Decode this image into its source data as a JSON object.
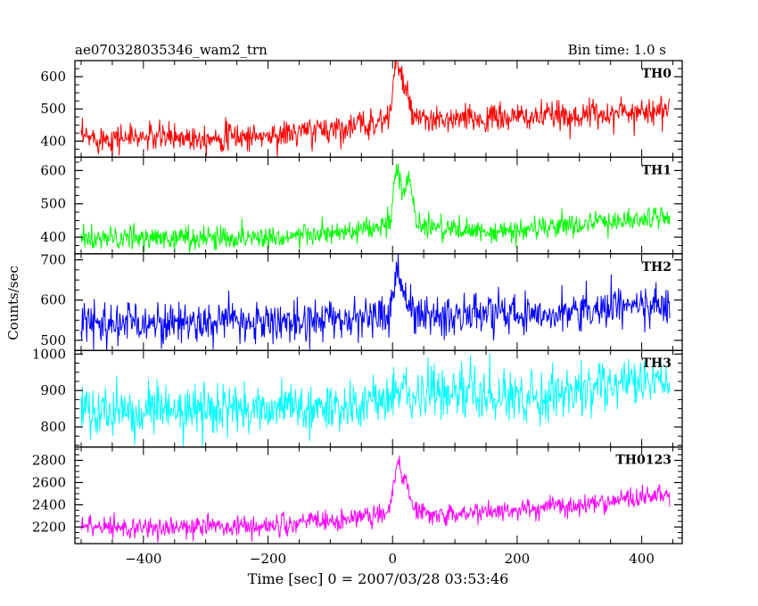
{
  "header": {
    "title": "ae070328035346_wam2_trn",
    "bin_time": "Bin time: 1.0 s"
  },
  "chart_data": {
    "type": "line",
    "xlabel": "Time [sec] 0 = 2007/03/28 03:53:46",
    "ylabel": "Counts/sec",
    "xlim": [
      -510,
      465
    ],
    "x_ticks": [
      -400,
      -200,
      0,
      200,
      400
    ],
    "x_range": [
      -500,
      445
    ],
    "grid": false,
    "panels": [
      {
        "name": "TH0",
        "color": "#ff0000",
        "ylim": [
          350,
          650
        ],
        "y_ticks": [
          400,
          500,
          600
        ],
        "trend": [
          [
            -500,
            410
          ],
          [
            -200,
            415
          ],
          [
            -50,
            450
          ],
          [
            -5,
            470
          ],
          [
            5,
            650
          ],
          [
            15,
            600
          ],
          [
            25,
            520
          ],
          [
            40,
            460
          ],
          [
            150,
            470
          ],
          [
            300,
            480
          ],
          [
            445,
            500
          ]
        ],
        "noise": 22
      },
      {
        "name": "TH1",
        "color": "#00ff00",
        "ylim": [
          350,
          640
        ],
        "y_ticks": [
          400,
          500,
          600
        ],
        "trend": [
          [
            -500,
            395
          ],
          [
            -200,
            400
          ],
          [
            -50,
            415
          ],
          [
            -5,
            440
          ],
          [
            8,
            620
          ],
          [
            15,
            520
          ],
          [
            25,
            580
          ],
          [
            40,
            440
          ],
          [
            150,
            410
          ],
          [
            300,
            440
          ],
          [
            445,
            460
          ]
        ],
        "noise": 18
      },
      {
        "name": "TH2",
        "color": "#0000ff",
        "ylim": [
          475,
          715
        ],
        "y_ticks": [
          500,
          600,
          700
        ],
        "trend": [
          [
            -500,
            545
          ],
          [
            -200,
            545
          ],
          [
            -50,
            555
          ],
          [
            -5,
            565
          ],
          [
            8,
            680
          ],
          [
            18,
            620
          ],
          [
            35,
            560
          ],
          [
            150,
            565
          ],
          [
            300,
            575
          ],
          [
            445,
            590
          ]
        ],
        "noise": 25
      },
      {
        "name": "TH3",
        "color": "#00ffff",
        "ylim": [
          745,
          1010
        ],
        "y_ticks": [
          800,
          900,
          1000
        ],
        "trend": [
          [
            -500,
            840
          ],
          [
            -300,
            845
          ],
          [
            -100,
            855
          ],
          [
            0,
            870
          ],
          [
            10,
            900
          ],
          [
            200,
            880
          ],
          [
            400,
            920
          ],
          [
            445,
            935
          ]
        ],
        "noise": 33
      },
      {
        "name": "TH0123",
        "color": "#ff00ff",
        "ylim": [
          2050,
          2920
        ],
        "y_ticks": [
          2200,
          2400,
          2600,
          2800
        ],
        "trend": [
          [
            -500,
            2190
          ],
          [
            -200,
            2210
          ],
          [
            -50,
            2280
          ],
          [
            -5,
            2350
          ],
          [
            8,
            2800
          ],
          [
            15,
            2650
          ],
          [
            25,
            2550
          ],
          [
            40,
            2330
          ],
          [
            150,
            2330
          ],
          [
            300,
            2400
          ],
          [
            445,
            2500
          ]
        ],
        "noise": 48
      }
    ]
  }
}
